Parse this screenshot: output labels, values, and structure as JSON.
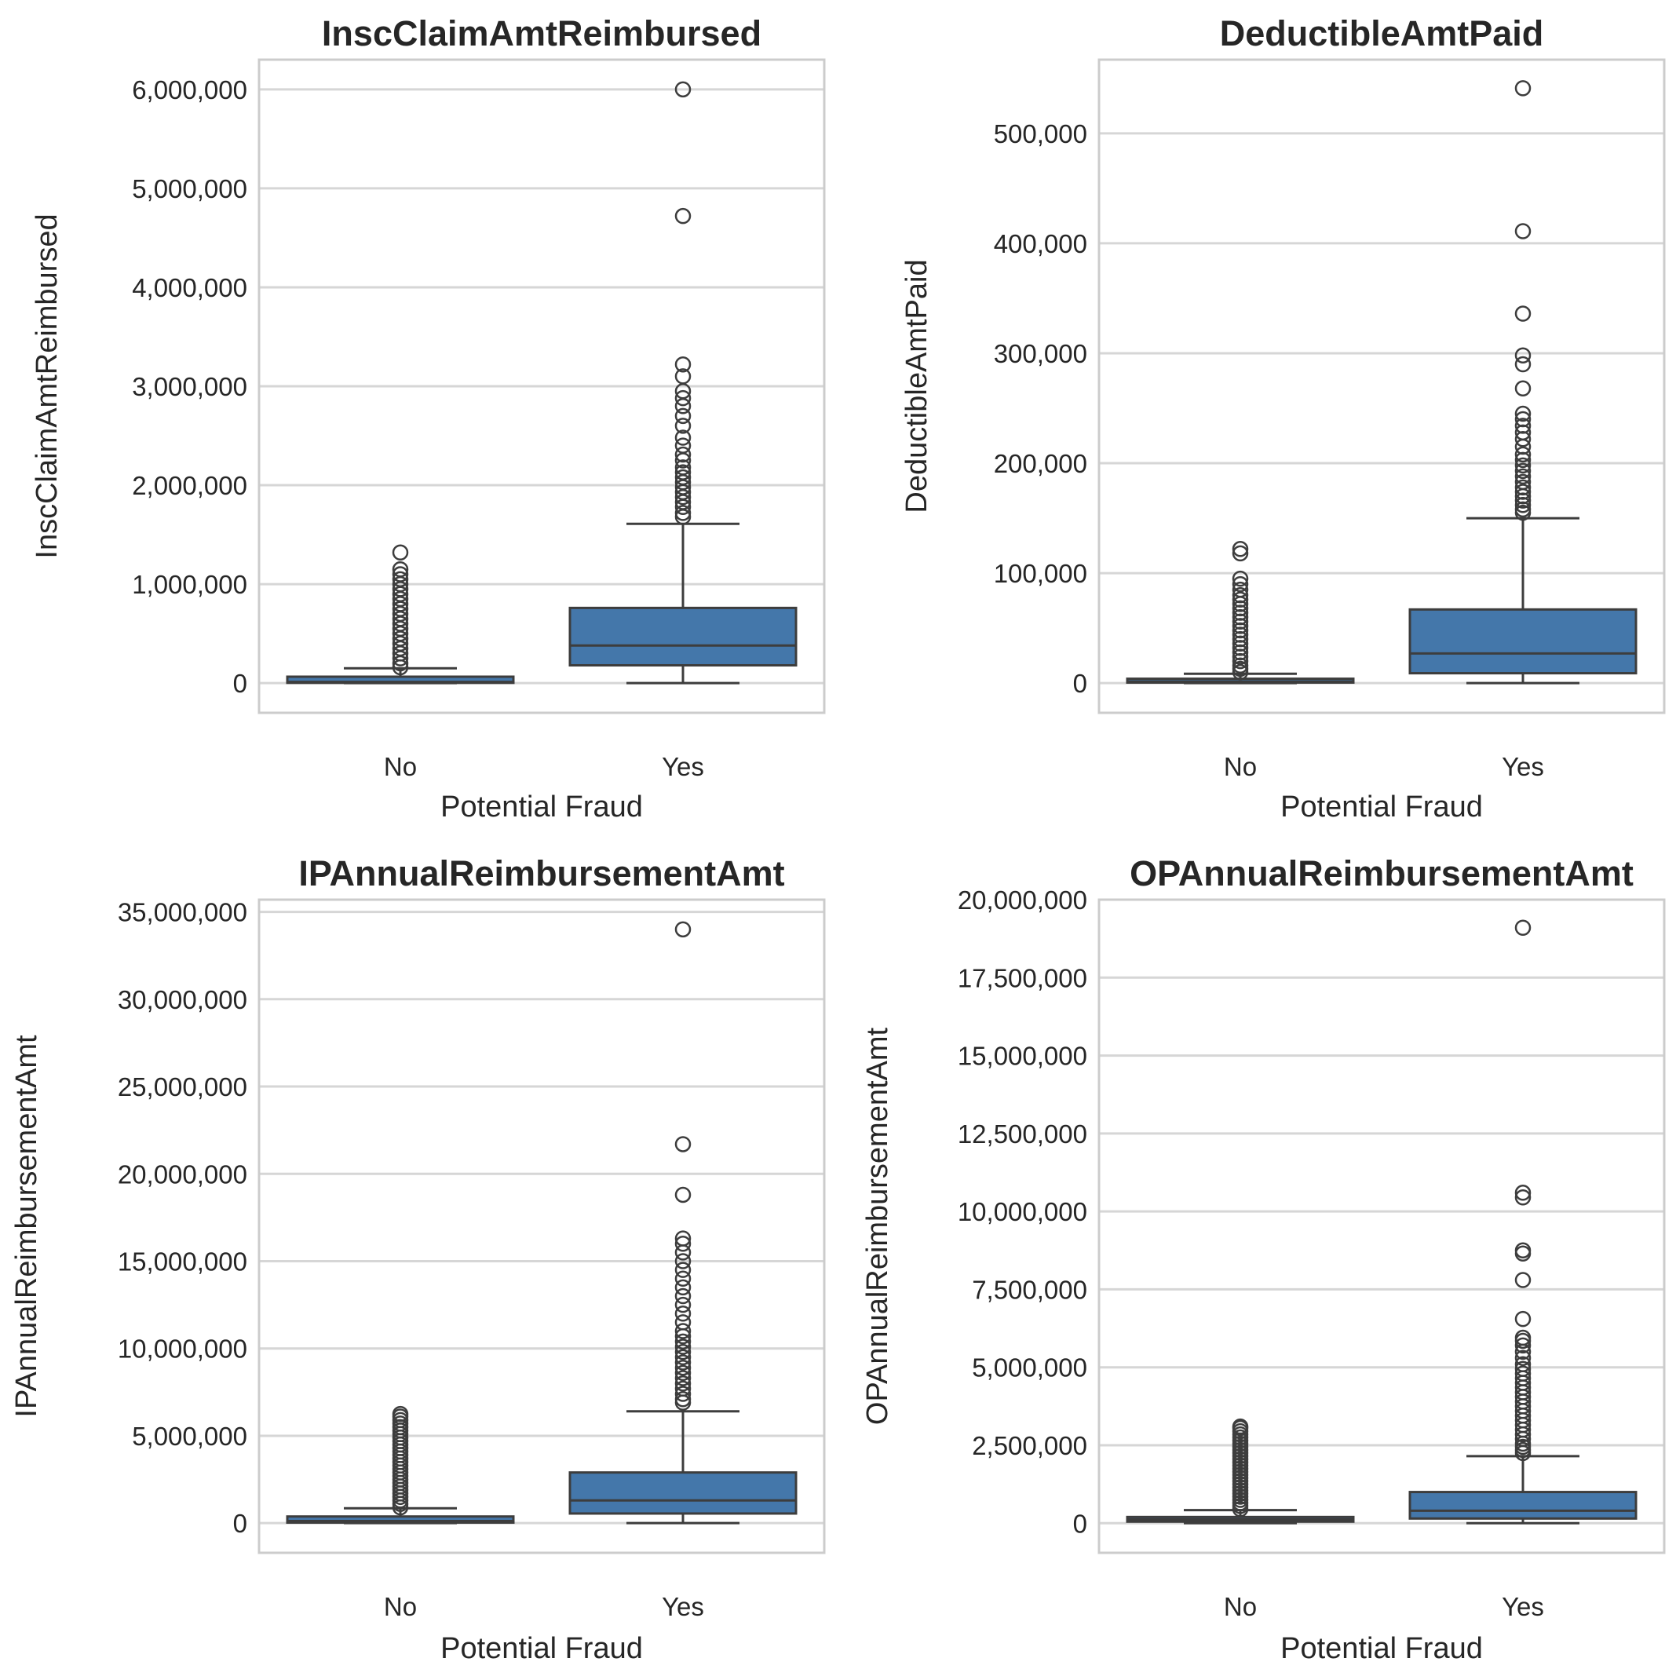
{
  "chart_data": [
    {
      "type": "box",
      "title": "InscClaimAmtReimbursed",
      "xlabel": "Potential Fraud",
      "ylabel": "InscClaimAmtReimbursed",
      "categories": [
        "No",
        "Yes"
      ],
      "yticks": [
        0,
        1000000,
        2000000,
        3000000,
        4000000,
        5000000,
        6000000
      ],
      "ytick_labels": [
        "0",
        "1,000,000",
        "2,000,000",
        "3,000,000",
        "4,000,000",
        "5,000,000",
        "6,000,000"
      ],
      "ylim": [
        -300000,
        6300000
      ],
      "color": "#4477aa",
      "boxes": [
        {
          "q1": 3000,
          "median": 12000,
          "q3": 65000,
          "whisker_low": 0,
          "whisker_high": 150000,
          "outliers": [
            160000,
            200000,
            250000,
            300000,
            350000,
            400000,
            450000,
            500000,
            550000,
            600000,
            650000,
            700000,
            750000,
            800000,
            850000,
            900000,
            950000,
            1000000,
            1050000,
            1100000,
            1150000,
            1320000
          ]
        },
        {
          "q1": 180000,
          "median": 380000,
          "q3": 760000,
          "whisker_low": 0,
          "whisker_high": 1610000,
          "outliers": [
            1680000,
            1720000,
            1780000,
            1830000,
            1880000,
            1930000,
            1980000,
            2030000,
            2080000,
            2130000,
            2180000,
            2250000,
            2310000,
            2400000,
            2480000,
            2600000,
            2700000,
            2800000,
            2880000,
            2950000,
            3100000,
            3220000,
            4720000,
            6000000
          ]
        }
      ]
    },
    {
      "type": "box",
      "title": "DeductibleAmtPaid",
      "xlabel": "Potential Fraud",
      "ylabel": "DeductibleAmtPaid",
      "categories": [
        "No",
        "Yes"
      ],
      "yticks": [
        0,
        100000,
        200000,
        300000,
        400000,
        500000
      ],
      "ytick_labels": [
        "0",
        "100,000",
        "200,000",
        "300,000",
        "400,000",
        "500,000"
      ],
      "ylim": [
        -27000,
        567000
      ],
      "color": "#4477aa",
      "boxes": [
        {
          "q1": 500,
          "median": 1500,
          "q3": 4000,
          "whisker_low": 0,
          "whisker_high": 8500,
          "outliers": [
            10000,
            13000,
            16000,
            20000,
            24000,
            28000,
            32000,
            36000,
            40000,
            44000,
            48000,
            52000,
            56000,
            60000,
            64000,
            68000,
            72000,
            76000,
            80000,
            85000,
            90000,
            95000,
            118000,
            122000
          ]
        },
        {
          "q1": 9000,
          "median": 27000,
          "q3": 67000,
          "whisker_low": 0,
          "whisker_high": 150000,
          "outliers": [
            155000,
            158000,
            162000,
            166000,
            170000,
            174000,
            178000,
            183000,
            188000,
            193000,
            198000,
            203000,
            208000,
            215000,
            222000,
            228000,
            234000,
            240000,
            245000,
            268000,
            290000,
            298000,
            336000,
            411000,
            541000
          ]
        }
      ]
    },
    {
      "type": "box",
      "title": "IPAnnualReimbursementAmt",
      "xlabel": "Potential Fraud",
      "ylabel": "IPAnnualReimbursementAmt",
      "categories": [
        "No",
        "Yes"
      ],
      "yticks": [
        0,
        5000000,
        10000000,
        15000000,
        20000000,
        25000000,
        30000000,
        35000000
      ],
      "ytick_labels": [
        "0",
        "5,000,000",
        "10,000,000",
        "15,000,000",
        "20,000,000",
        "25,000,000",
        "30,000,000",
        "35,000,000"
      ],
      "ylim": [
        -1700000,
        35700000
      ],
      "color": "#4477aa",
      "boxes": [
        {
          "q1": 30000,
          "median": 120000,
          "q3": 380000,
          "whisker_low": 0,
          "whisker_high": 850000,
          "outliers": [
            900000,
            1100000,
            1300000,
            1500000,
            1700000,
            1900000,
            2100000,
            2300000,
            2500000,
            2700000,
            2900000,
            3100000,
            3300000,
            3500000,
            3700000,
            3900000,
            4100000,
            4300000,
            4500000,
            4700000,
            4900000,
            5100000,
            5300000,
            5500000,
            5700000,
            5900000,
            6100000,
            6250000
          ]
        },
        {
          "q1": 550000,
          "median": 1300000,
          "q3": 2900000,
          "whisker_low": 0,
          "whisker_high": 6400000,
          "outliers": [
            6900000,
            7100000,
            7400000,
            7700000,
            8000000,
            8300000,
            8600000,
            8900000,
            9200000,
            9500000,
            9800000,
            10100000,
            10400000,
            10700000,
            11000000,
            11500000,
            12000000,
            12500000,
            13000000,
            13500000,
            14000000,
            14500000,
            15000000,
            15500000,
            16000000,
            16300000,
            18800000,
            21700000,
            34000000
          ]
        }
      ]
    },
    {
      "type": "box",
      "title": "OPAnnualReimbursementAmt",
      "xlabel": "Potential Fraud",
      "ylabel": "OPAnnualReimbursementAmt",
      "categories": [
        "No",
        "Yes"
      ],
      "yticks": [
        0,
        2500000,
        5000000,
        7500000,
        10000000,
        12500000,
        15000000,
        17500000,
        20000000
      ],
      "ytick_labels": [
        "0",
        "2,500,000",
        "5,000,000",
        "7,500,000",
        "10,000,000",
        "12,500,000",
        "15,000,000",
        "17,500,000",
        "20,000,000"
      ],
      "ylim": [
        -950000,
        20000000
      ],
      "color": "#4477aa",
      "boxes": [
        {
          "q1": 50000,
          "median": 120000,
          "q3": 200000,
          "whisker_low": 0,
          "whisker_high": 420000,
          "outliers": [
            450000,
            550000,
            650000,
            750000,
            850000,
            950000,
            1050000,
            1150000,
            1250000,
            1350000,
            1450000,
            1550000,
            1650000,
            1750000,
            1850000,
            1950000,
            2050000,
            2150000,
            2250000,
            2350000,
            2450000,
            2550000,
            2650000,
            2750000,
            2850000,
            2950000,
            3050000,
            3100000
          ]
        },
        {
          "q1": 150000,
          "median": 400000,
          "q3": 1000000,
          "whisker_low": 0,
          "whisker_high": 2150000,
          "outliers": [
            2250000,
            2350000,
            2450000,
            2550000,
            2700000,
            2850000,
            3000000,
            3150000,
            3300000,
            3450000,
            3600000,
            3750000,
            3900000,
            4050000,
            4200000,
            4350000,
            4500000,
            4650000,
            4800000,
            4950000,
            5100000,
            5300000,
            5500000,
            5700000,
            5850000,
            5950000,
            6550000,
            7800000,
            8650000,
            8750000,
            10450000,
            10600000,
            19100000
          ]
        }
      ]
    }
  ]
}
